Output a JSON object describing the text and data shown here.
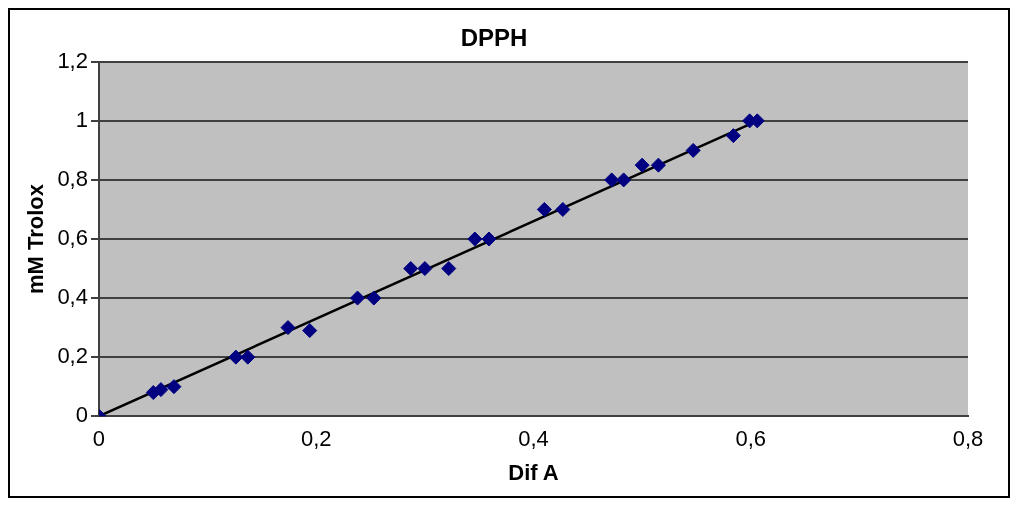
{
  "chart_data": {
    "type": "scatter",
    "title": "DPPH",
    "xlabel": "Dif A",
    "ylabel": "mM Trolox",
    "xlim": [
      0,
      0.8
    ],
    "ylim": [
      0,
      1.2
    ],
    "xticks": [
      0,
      {
        "value": 0.2,
        "label": "0,2"
      },
      {
        "value": 0.4,
        "label": "0,4"
      },
      {
        "value": 0.6,
        "label": "0,6"
      },
      {
        "value": 0.8,
        "label": "0,8"
      }
    ],
    "yticks": [
      0,
      {
        "value": 0.2,
        "label": "0,2"
      },
      {
        "value": 0.4,
        "label": "0,4"
      },
      {
        "value": 0.6,
        "label": "0,6"
      },
      {
        "value": 0.8,
        "label": "0,8"
      },
      1,
      {
        "value": 1.2,
        "label": "1,2"
      }
    ],
    "grid": "y",
    "legend": false,
    "series": [
      {
        "marker": "diamond",
        "color": "#000080",
        "x": [
          0,
          0.05,
          0.057,
          0.069,
          0.126,
          0.137,
          0.174,
          0.194,
          0.238,
          0.253,
          0.287,
          0.3,
          0.322,
          0.346,
          0.359,
          0.41,
          0.427,
          0.472,
          0.483,
          0.5,
          0.515,
          0.547,
          0.584,
          0.599,
          0.606
        ],
        "values": [
          0,
          0.08,
          0.09,
          0.1,
          0.2,
          0.2,
          0.3,
          0.29,
          0.4,
          0.4,
          0.5,
          0.5,
          0.5,
          0.6,
          0.6,
          0.7,
          0.7,
          0.8,
          0.8,
          0.85,
          0.85,
          0.9,
          0.95,
          1,
          1
        ]
      },
      {
        "type": "line",
        "color": "#000000",
        "x": [
          0,
          0.606
        ],
        "values": [
          0,
          1
        ]
      }
    ]
  }
}
